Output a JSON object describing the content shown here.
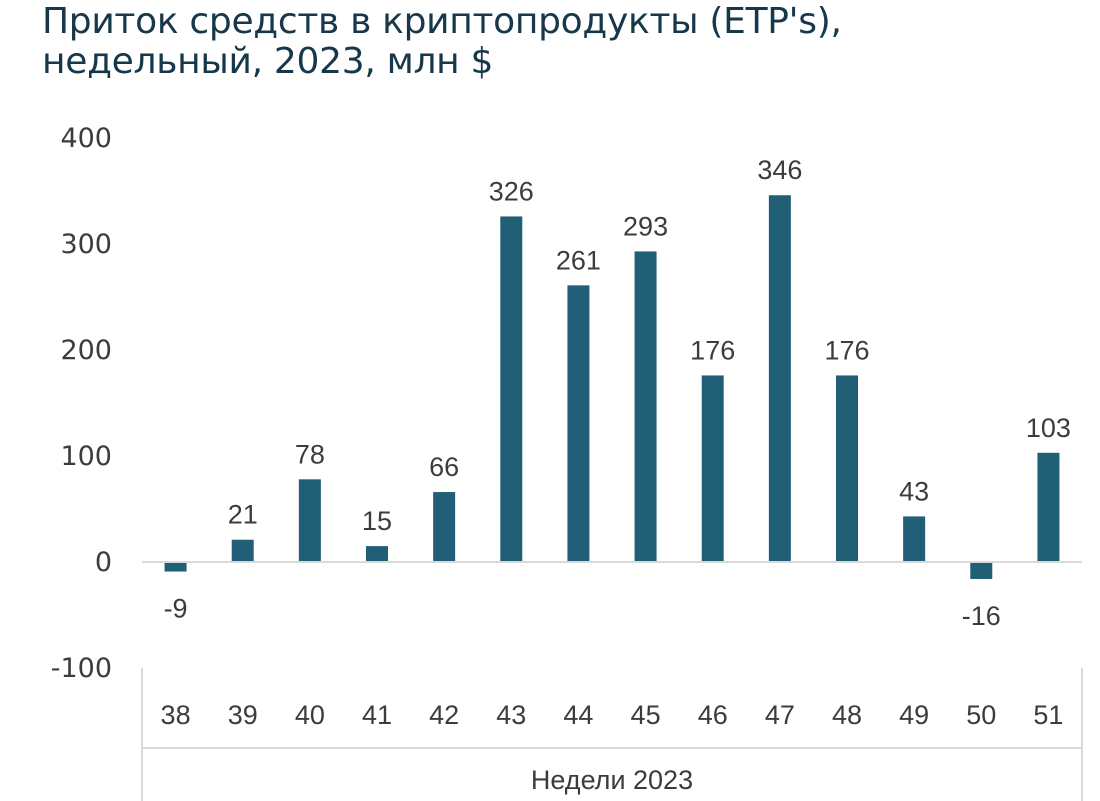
{
  "title": {
    "line1": "Приток средств в криптопродукты (ETP's),",
    "line2": "недельный, 2023, млн $"
  },
  "colors": {
    "bar": "#215f77",
    "title": "#17374a",
    "text": "#3c3c3c",
    "axis": "#d9d9d9"
  },
  "chart_data": {
    "type": "bar",
    "title": "Приток средств в криптопродукты (ETP's), недельный, 2023, млн $",
    "categories": [
      "38",
      "39",
      "40",
      "41",
      "42",
      "43",
      "44",
      "45",
      "46",
      "47",
      "48",
      "49",
      "50",
      "51"
    ],
    "values": [
      -9,
      21,
      78,
      15,
      66,
      326,
      261,
      293,
      176,
      346,
      176,
      43,
      -16,
      103
    ],
    "data_labels": [
      "-9",
      "21",
      "78",
      "15",
      "66",
      "326",
      "261",
      "293",
      "176",
      "346",
      "176",
      "43",
      "-16",
      "103"
    ],
    "xlabel": "Недели 2023",
    "ylabel": "",
    "ylim": [
      -100,
      400
    ],
    "yticks": [
      400,
      300,
      200,
      100,
      0,
      -100
    ],
    "ytick_labels": [
      "400",
      "300",
      "200",
      "100",
      "0",
      "-100"
    ],
    "grid": false,
    "legend": "none"
  }
}
